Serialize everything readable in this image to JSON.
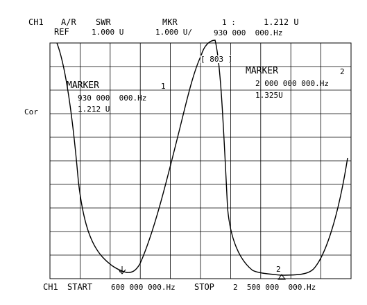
{
  "header": {
    "row1": {
      "channel": "CH1",
      "mode": "A/R",
      "format": "SWR",
      "marker_label": "MKR",
      "marker_index": "1 :",
      "marker_value": "1.212 U"
    },
    "row2": {
      "ref_label": "REF",
      "ref_value": "1.000 U",
      "scale": "1.000 U/",
      "marker_freq": "930 000  000.Hz"
    }
  },
  "side_label": "Cor",
  "overlay": {
    "box_label": "[ 803 ]"
  },
  "marker1": {
    "title": "MARKER",
    "index": "1",
    "freq": "930 000  000.Hz",
    "value": "1.212 U"
  },
  "marker2": {
    "title": "MARKER",
    "index": "2",
    "freq": "2 000 000 000.Hz",
    "value": "1.325U"
  },
  "footer": {
    "channel": "CH1",
    "start_label": "START",
    "start_value": "600 000 000.Hz",
    "stop_label": "STOP",
    "stop_value": "2  500 000  000.Hz"
  },
  "graph": {
    "columns": 10,
    "rows": 10,
    "trace_color": "#000000"
  },
  "markers_on_trace": [
    {
      "index": "1",
      "symbol": "arrow-down-icon"
    },
    {
      "index": "2",
      "symbol": "triangle-up-icon"
    }
  ]
}
